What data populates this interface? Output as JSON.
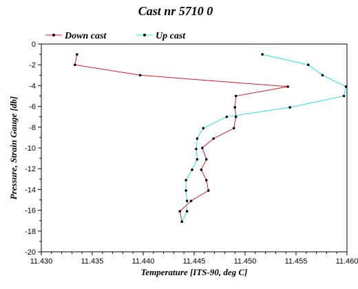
{
  "chart_data": {
    "type": "line",
    "title": "Cast nr 5710 0",
    "xlabel": "Temperature [ITS-90, deg C]",
    "ylabel": "Pressure, Strain Gauge [db]",
    "xlim": [
      11.43,
      11.46
    ],
    "ylim": [
      -20,
      0
    ],
    "xticks": [
      "11.430",
      "11.435",
      "11.440",
      "11.445",
      "11.450",
      "11.455",
      "11.460"
    ],
    "yticks": [
      "0",
      "-2",
      "-4",
      "-6",
      "-8",
      "-10",
      "-12",
      "-14",
      "-16",
      "-18",
      "-20"
    ],
    "legend_position": "top",
    "grid": false,
    "series": [
      {
        "name": "Down cast",
        "color": "#e8141e",
        "points": [
          [
            11.4335,
            -1.0
          ],
          [
            11.4333,
            -2.0
          ],
          [
            11.4397,
            -3.0
          ],
          [
            11.4542,
            -4.1
          ],
          [
            11.4491,
            -5.0
          ],
          [
            11.449,
            -6.1
          ],
          [
            11.4491,
            -7.0
          ],
          [
            11.4489,
            -8.1
          ],
          [
            11.4469,
            -9.1
          ],
          [
            11.4458,
            -10.0
          ],
          [
            11.4462,
            -11.1
          ],
          [
            11.4457,
            -12.1
          ],
          [
            11.4462,
            -13.1
          ],
          [
            11.4464,
            -14.1
          ],
          [
            11.4447,
            -15.1
          ],
          [
            11.4436,
            -16.1
          ],
          [
            11.4438,
            -17.1
          ]
        ]
      },
      {
        "name": "Up cast",
        "color": "#22e6e6",
        "points": [
          [
            11.4438,
            -17.1
          ],
          [
            11.4443,
            -16.1
          ],
          [
            11.4443,
            -15.1
          ],
          [
            11.4442,
            -14.1
          ],
          [
            11.4442,
            -13.1
          ],
          [
            11.4448,
            -12.1
          ],
          [
            11.4453,
            -11.1
          ],
          [
            11.4452,
            -10.1
          ],
          [
            11.4453,
            -9.1
          ],
          [
            11.4459,
            -8.1
          ],
          [
            11.4482,
            -7.0
          ],
          [
            11.4544,
            -6.1
          ],
          [
            11.4597,
            -5.0
          ],
          [
            11.4599,
            -4.1
          ],
          [
            11.4576,
            -3.0
          ],
          [
            11.4562,
            -2.0
          ],
          [
            11.4517,
            -1.0
          ]
        ]
      }
    ]
  }
}
